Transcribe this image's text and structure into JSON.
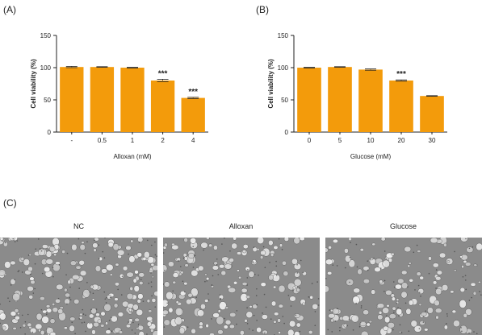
{
  "panels": {
    "a_label": "(A)",
    "b_label": "(B)",
    "c_label": "(C)"
  },
  "chart_data": [
    {
      "type": "bar",
      "categories": [
        "-",
        "0.5",
        "1",
        "2",
        "4"
      ],
      "values": [
        101,
        101,
        100,
        80,
        53
      ],
      "errors": [
        1,
        0.5,
        0.5,
        2,
        1
      ],
      "annotations": [
        "",
        "",
        "",
        "***",
        "***"
      ],
      "xlabel": "Alloxan (mM)",
      "ylabel": "Cell viability (%)",
      "ylim": [
        0,
        150
      ],
      "yticks": [
        0,
        50,
        100,
        150
      ],
      "color": "#F39B0B",
      "grid": false
    },
    {
      "type": "bar",
      "categories": [
        "0",
        "5",
        "10",
        "20",
        "30"
      ],
      "values": [
        100,
        101,
        97,
        80,
        56
      ],
      "errors": [
        0.5,
        0.5,
        1,
        1,
        0.5
      ],
      "annotations": [
        "",
        "",
        "",
        "***",
        ""
      ],
      "xlabel": "Glucose (mM)",
      "ylabel": "Cell viability (%)",
      "ylim": [
        0,
        150
      ],
      "yticks": [
        0,
        50,
        100,
        150
      ],
      "color": "#F39B0B",
      "grid": false
    }
  ],
  "images": [
    {
      "title": "NC"
    },
    {
      "title": "Alloxan"
    },
    {
      "title": "Glucose"
    }
  ]
}
